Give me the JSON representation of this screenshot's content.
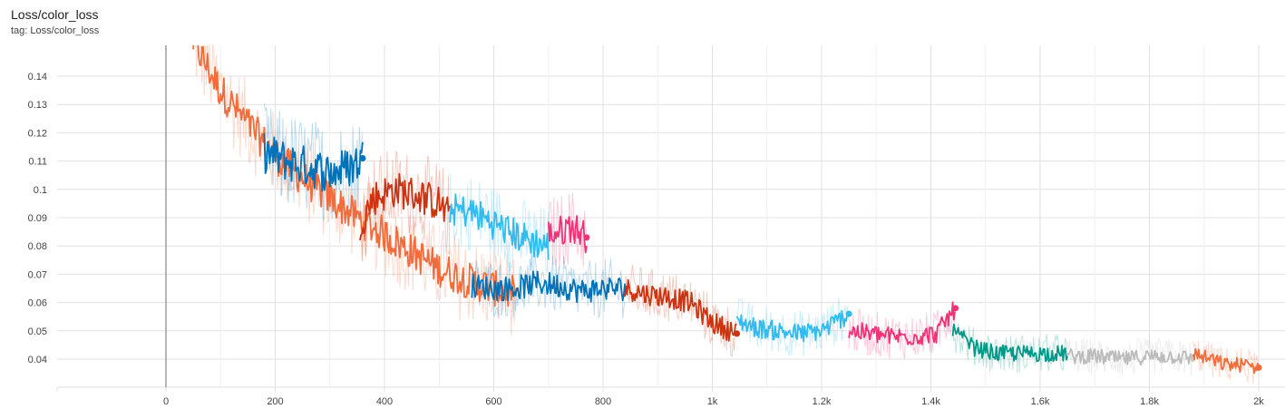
{
  "card": {
    "title": "Loss/color_loss",
    "tag": "tag: Loss/color_loss"
  },
  "colors": {
    "orange": "#f26b3a",
    "blue": "#0072b8",
    "rust": "#cc3311",
    "cyan": "#33bbee",
    "magenta": "#ee3377",
    "teal": "#009988",
    "gray": "#bbbbbb",
    "grid": "#e0e0e0",
    "zero_line": "#9e9e9e"
  },
  "chart_data": {
    "type": "line",
    "title": "Loss/color_loss",
    "subtitle": "tag: Loss/color_loss",
    "xlabel": "",
    "ylabel": "",
    "xlim": [
      -200,
      2050
    ],
    "ylim": [
      0.031,
      0.148
    ],
    "grid": true,
    "x_ticks": [
      0,
      200,
      400,
      600,
      800,
      1000,
      1200,
      1400,
      1600,
      1800,
      2000
    ],
    "x_tick_labels": [
      "0",
      "200",
      "400",
      "600",
      "800",
      "1k",
      "1.2k",
      "1.4k",
      "1.6k",
      "1.8k",
      "2k"
    ],
    "y_ticks": [
      0.04,
      0.05,
      0.06,
      0.07,
      0.08,
      0.09,
      0.1,
      0.11,
      0.12,
      0.13,
      0.14
    ],
    "y_tick_labels": [
      "0.04",
      "0.05",
      "0.06",
      "0.07",
      "0.08",
      "0.09",
      "0.1",
      "0.11",
      "0.12",
      "0.13",
      "0.14"
    ],
    "series": [
      {
        "color": "#f26b3a",
        "x": [
          50,
          100,
          150,
          200,
          250,
          300,
          350,
          400,
          450,
          500,
          550,
          600,
          640
        ],
        "y": [
          0.152,
          0.135,
          0.123,
          0.112,
          0.104,
          0.097,
          0.09,
          0.084,
          0.078,
          0.072,
          0.068,
          0.065,
          0.063
        ],
        "end_marker": false
      },
      {
        "color": "#0072b8",
        "x": [
          180,
          220,
          260,
          300,
          340,
          360
        ],
        "y": [
          0.113,
          0.11,
          0.108,
          0.106,
          0.108,
          0.111
        ],
        "end_marker": true
      },
      {
        "color": "#cc3311",
        "x": [
          355,
          380,
          420,
          460,
          500,
          520
        ],
        "y": [
          0.088,
          0.097,
          0.1,
          0.098,
          0.095,
          0.09
        ],
        "end_marker": false
      },
      {
        "color": "#33bbee",
        "x": [
          520,
          560,
          600,
          640,
          680,
          700
        ],
        "y": [
          0.093,
          0.092,
          0.088,
          0.084,
          0.081,
          0.08
        ],
        "end_marker": false
      },
      {
        "color": "#ee3377",
        "x": [
          700,
          720,
          740,
          760,
          770
        ],
        "y": [
          0.084,
          0.085,
          0.087,
          0.085,
          0.083
        ],
        "end_marker": true
      },
      {
        "color": "#0072b8",
        "x": [
          560,
          600,
          640,
          680,
          720,
          760,
          800,
          840
        ],
        "y": [
          0.066,
          0.065,
          0.065,
          0.067,
          0.066,
          0.064,
          0.065,
          0.065
        ],
        "end_marker": false
      },
      {
        "color": "#cc3311",
        "x": [
          840,
          880,
          920,
          960,
          1000,
          1045
        ],
        "y": [
          0.065,
          0.063,
          0.062,
          0.06,
          0.053,
          0.049
        ],
        "end_marker": true
      },
      {
        "color": "#33bbee",
        "x": [
          1045,
          1080,
          1120,
          1160,
          1200,
          1250
        ],
        "y": [
          0.054,
          0.051,
          0.05,
          0.049,
          0.05,
          0.056
        ],
        "end_marker": true
      },
      {
        "color": "#ee3377",
        "x": [
          1250,
          1290,
          1330,
          1370,
          1410,
          1445
        ],
        "y": [
          0.05,
          0.049,
          0.048,
          0.048,
          0.049,
          0.058
        ],
        "end_marker": true
      },
      {
        "color": "#009988",
        "x": [
          1440,
          1480,
          1520,
          1560,
          1600,
          1650
        ],
        "y": [
          0.05,
          0.044,
          0.042,
          0.042,
          0.042,
          0.042
        ],
        "end_marker": false
      },
      {
        "color": "#bbbbbb",
        "x": [
          1650,
          1700,
          1750,
          1800,
          1850,
          1880
        ],
        "y": [
          0.041,
          0.041,
          0.04,
          0.041,
          0.041,
          0.04
        ],
        "end_marker": false
      },
      {
        "color": "#f26b3a",
        "x": [
          1880,
          1910,
          1940,
          1970,
          2000
        ],
        "y": [
          0.042,
          0.04,
          0.038,
          0.038,
          0.037
        ],
        "end_marker": true
      }
    ]
  }
}
